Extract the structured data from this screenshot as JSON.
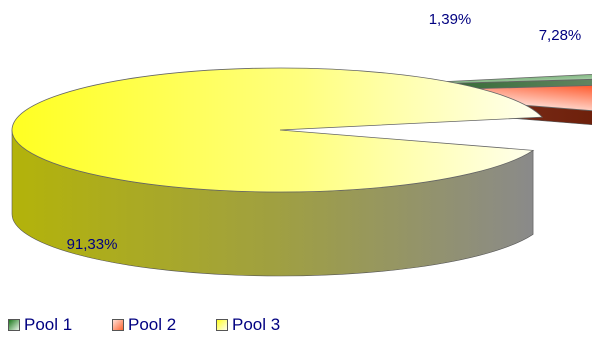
{
  "chart_data": {
    "type": "pie",
    "title": "",
    "labels": [
      "Pool 1",
      "Pool 2",
      "Pool 3"
    ],
    "values": [
      1.39,
      7.28,
      91.33
    ],
    "data_labels": [
      "1,39%",
      "7,28%",
      "91,33%"
    ],
    "colors": [
      "#228b22",
      "#ff6633",
      "#ffff33"
    ],
    "legend": "bottom-left"
  }
}
